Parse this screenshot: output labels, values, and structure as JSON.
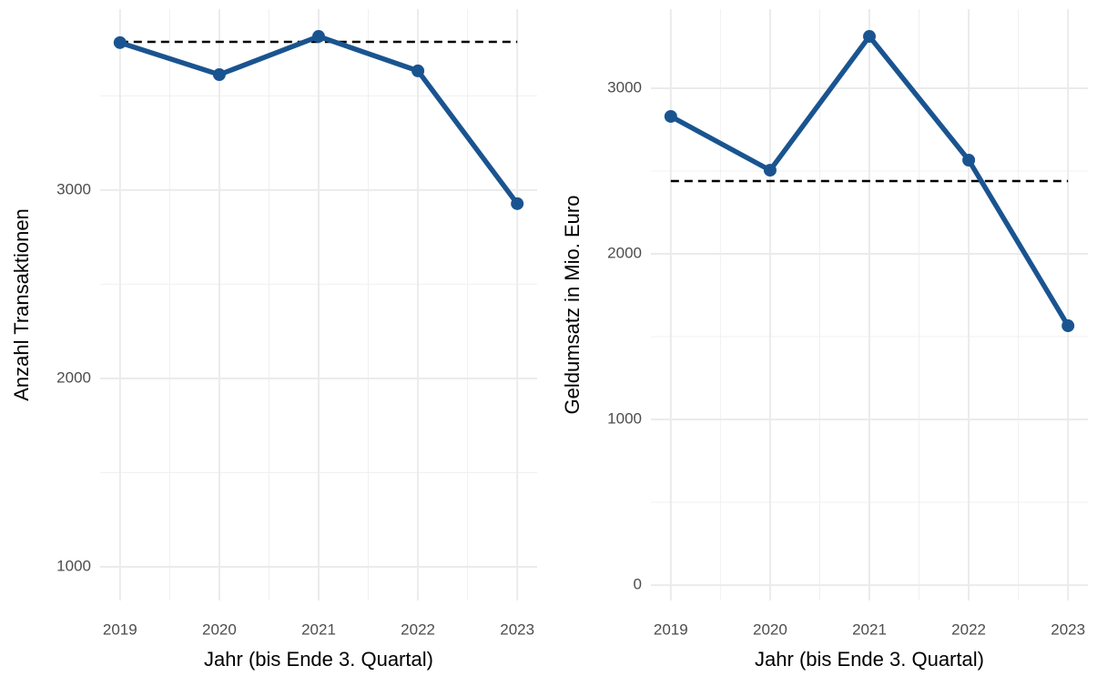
{
  "chart_data": [
    {
      "type": "line",
      "ylabel": "Anzahl Transaktionen",
      "xlabel": "Jahr (bis Ende 3. Quartal)",
      "x": [
        2019,
        2020,
        2021,
        2022,
        2023
      ],
      "values": [
        3783,
        3613,
        3816,
        3633,
        2928
      ],
      "color": "#1a5490",
      "reference_line": 3787,
      "xlim": [
        2018.8,
        2023.2
      ],
      "xticks": [
        2019,
        2020,
        2021,
        2022,
        2023
      ],
      "minor_xticks": [
        2019.5,
        2020.5,
        2021.5,
        2022.5
      ],
      "ylim": [
        821,
        3961
      ],
      "yticks": [
        1000,
        2000,
        3000
      ],
      "minor_yticks": [
        1500,
        2500,
        3500
      ],
      "grid": true
    },
    {
      "type": "line",
      "ylabel": "Geldumsatz in Mio. Euro",
      "xlabel": "Jahr (bis Ende 3. Quartal)",
      "x": [
        2019,
        2020,
        2021,
        2022,
        2023
      ],
      "values": [
        2830,
        2505,
        3313,
        2566,
        1566
      ],
      "color": "#1a5490",
      "reference_line": 2440,
      "xlim": [
        2018.8,
        2023.2
      ],
      "xticks": [
        2019,
        2020,
        2021,
        2022,
        2023
      ],
      "minor_xticks": [
        2019.5,
        2020.5,
        2021.5,
        2022.5
      ],
      "ylim": [
        -93,
        3478
      ],
      "yticks": [
        0,
        1000,
        2000,
        3000
      ],
      "minor_yticks": [
        500,
        1500,
        2500
      ],
      "grid": true
    }
  ]
}
